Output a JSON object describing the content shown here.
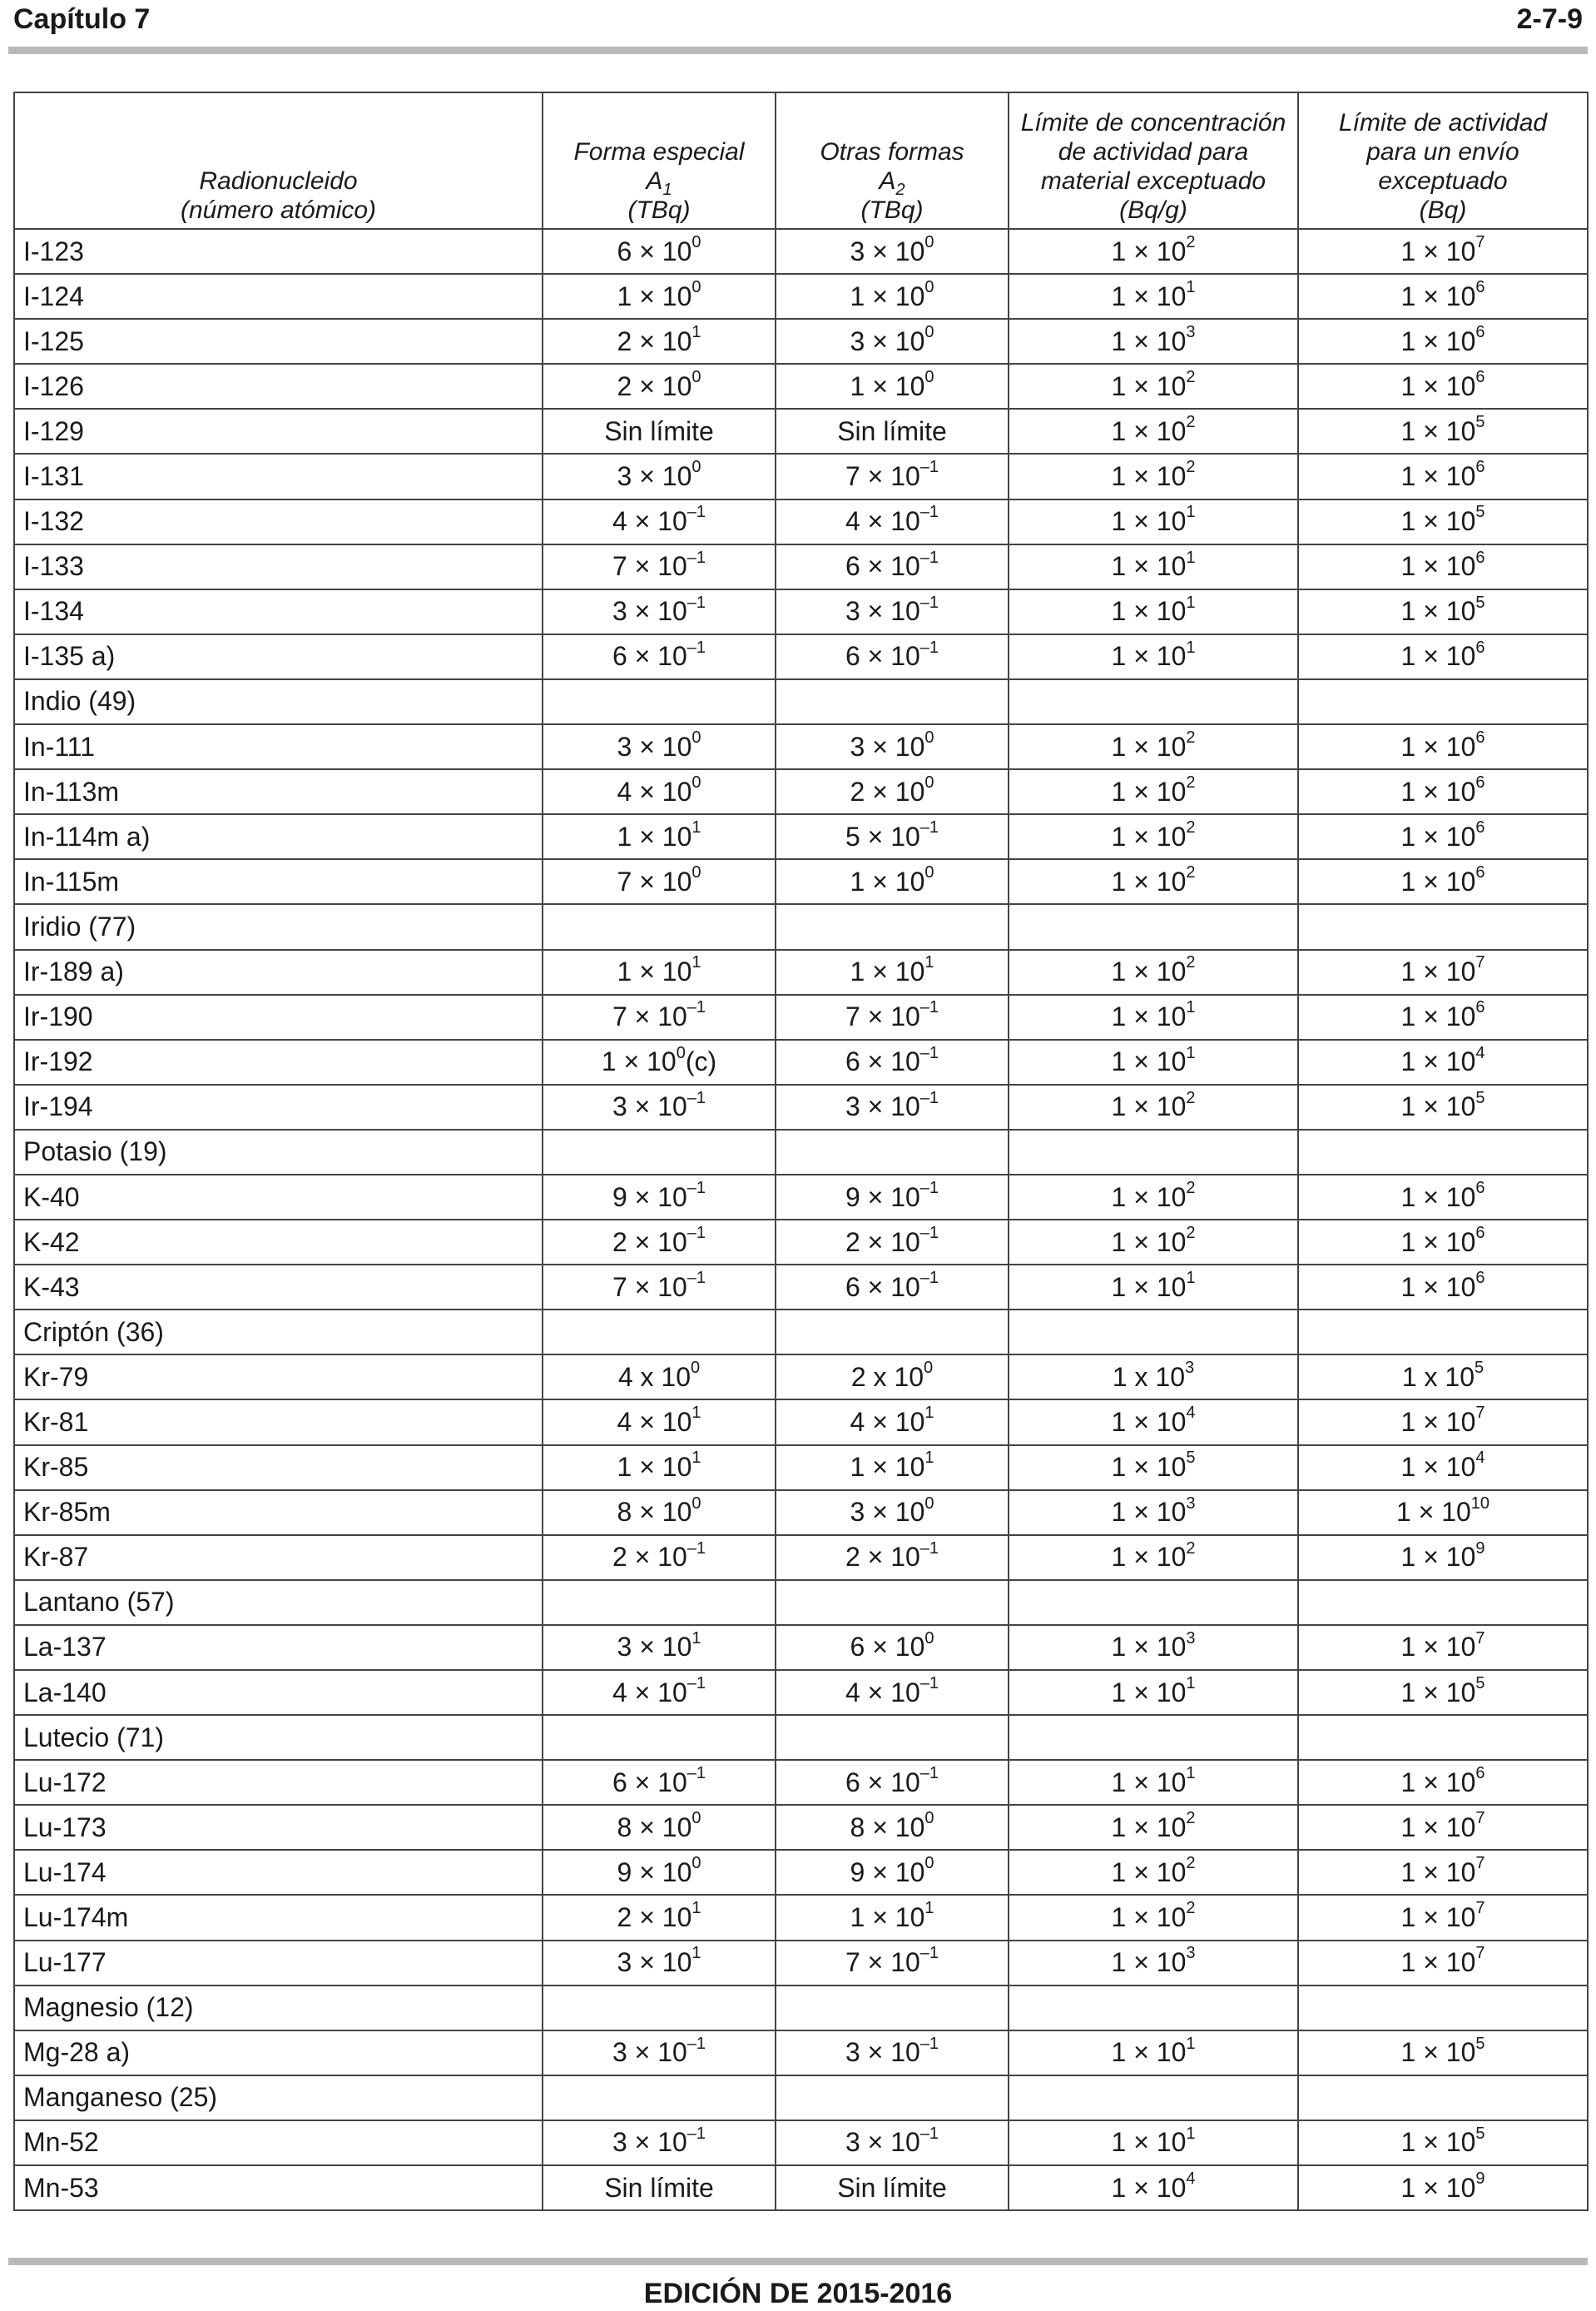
{
  "header": {
    "chapter": "Capítulo 7",
    "page": "2-7-9"
  },
  "footer": {
    "edition": "EDICIÓN DE 2015-2016"
  },
  "table": {
    "headers": {
      "radionuclide": [
        "Radionucleido",
        "(número atómico)"
      ],
      "a1": {
        "line1": "Forma especial",
        "sym": "A",
        "sub": "1",
        "unit": "(TBq)"
      },
      "a2": {
        "line1": "Otras formas",
        "sym": "A",
        "sub": "2",
        "unit": "(TBq)"
      },
      "conc": [
        "Límite de concentración",
        "de actividad para",
        "material exceptuado",
        "(Bq/g)"
      ],
      "act": [
        "Límite de actividad",
        "para un envío",
        "exceptuado",
        "(Bq)"
      ]
    },
    "rows": [
      [
        "I-123",
        "6 × 10^0",
        "3 × 10^0",
        "1 × 10^2",
        "1 × 10^7"
      ],
      [
        "I-124",
        "1 × 10^0",
        "1 × 10^0",
        "1 × 10^1",
        "1 × 10^6"
      ],
      [
        "I-125",
        "2 × 10^1",
        "3 × 10^0",
        "1 × 10^3",
        "1 × 10^6"
      ],
      [
        "I-126",
        "2 × 10^0",
        "1 × 10^0",
        "1 × 10^2",
        "1 × 10^6"
      ],
      [
        "I-129",
        "Sin límite",
        "Sin límite",
        "1 × 10^2",
        "1 × 10^5"
      ],
      [
        "I-131",
        "3 × 10^0",
        "7 × 10^–1",
        "1 × 10^2",
        "1 × 10^6"
      ],
      [
        "I-132",
        "4 × 10^–1",
        "4 × 10^–1",
        "1 × 10^1",
        "1 × 10^5"
      ],
      [
        "I-133",
        "7 × 10^–1",
        "6 × 10^–1",
        "1 × 10^1",
        "1 × 10^6"
      ],
      [
        "I-134",
        "3 × 10^–1",
        "3 × 10^–1",
        "1 × 10^1",
        "1 × 10^5"
      ],
      [
        "I-135 a)",
        "6 × 10^–1",
        "6 × 10^–1",
        "1 × 10^1",
        "1 × 10^6"
      ],
      [
        "Indio (49)",
        "",
        "",
        "",
        ""
      ],
      [
        "In-111",
        "3 × 10^0",
        "3 × 10^0",
        "1 × 10^2",
        "1 × 10^6"
      ],
      [
        "In-113m",
        "4 × 10^0",
        "2 × 10^0",
        "1 × 10^2",
        "1 × 10^6"
      ],
      [
        "In-114m a)",
        "1 × 10^1",
        "5 × 10^–1",
        "1 × 10^2",
        "1 × 10^6"
      ],
      [
        "In-115m",
        "7 × 10^0",
        "1 × 10^0",
        "1 × 10^2",
        "1 × 10^6"
      ],
      [
        "Iridio (77)",
        "",
        "",
        "",
        ""
      ],
      [
        "Ir-189 a)",
        "1 × 10^1",
        "1 × 10^1",
        "1 × 10^2",
        "1 × 10^7"
      ],
      [
        "Ir-190",
        "7 × 10^–1",
        "7 × 10^–1",
        "1 × 10^1",
        "1 × 10^6"
      ],
      [
        "Ir-192",
        "1 × 10^0(c)",
        "6 × 10^–1",
        "1 × 10^1",
        "1 × 10^4"
      ],
      [
        "Ir-194",
        "3 × 10^–1",
        "3 × 10^–1",
        "1 × 10^2",
        "1 × 10^5"
      ],
      [
        "Potasio (19)",
        "",
        "",
        "",
        ""
      ],
      [
        "K-40",
        "9 × 10^–1",
        "9 × 10^–1",
        "1 × 10^2",
        "1 × 10^6"
      ],
      [
        "K-42",
        "2 × 10^–1",
        "2 × 10^–1",
        "1 × 10^2",
        "1 × 10^6"
      ],
      [
        "K-43",
        "7 × 10^–1",
        "6 × 10^–1",
        "1 × 10^1",
        "1 × 10^6"
      ],
      [
        "Criptón (36)",
        "",
        "",
        "",
        ""
      ],
      [
        "Kr-79",
        "4 x 10^0",
        "2 x 10^0",
        "1 x 10^3",
        "1 x 10^5"
      ],
      [
        "Kr-81",
        "4 × 10^1",
        "4 × 10^1",
        "1 × 10^4",
        "1 × 10^7"
      ],
      [
        "Kr-85",
        "1 × 10^1",
        "1 × 10^1",
        "1 × 10^5",
        "1 × 10^4"
      ],
      [
        "Kr-85m",
        "8 × 10^0",
        "3 × 10^0",
        "1 × 10^3",
        "1 × 10^10"
      ],
      [
        "Kr-87",
        "2 × 10^–1",
        "2 × 10^–1",
        "1 × 10^2",
        "1 × 10^9"
      ],
      [
        "Lantano (57)",
        "",
        "",
        "",
        ""
      ],
      [
        "La-137",
        "3 × 10^1",
        "6 × 10^0",
        "1 × 10^3",
        "1 × 10^7"
      ],
      [
        "La-140",
        "4 × 10^–1",
        "4 × 10^–1",
        "1 × 10^1",
        "1 × 10^5"
      ],
      [
        "Lutecio (71)",
        "",
        "",
        "",
        ""
      ],
      [
        "Lu-172",
        "6 × 10^–1",
        "6 × 10^–1",
        "1 × 10^1",
        "1 × 10^6"
      ],
      [
        "Lu-173",
        "8 × 10^0",
        "8 × 10^0",
        "1 × 10^2",
        "1 × 10^7"
      ],
      [
        "Lu-174",
        "9 × 10^0",
        "9 × 10^0",
        "1 × 10^2",
        "1 × 10^7"
      ],
      [
        "Lu-174m",
        "2 × 10^1",
        "1 × 10^1",
        "1 × 10^2",
        "1 × 10^7"
      ],
      [
        "Lu-177",
        "3 × 10^1",
        "7 × 10^–1",
        "1 × 10^3",
        "1 × 10^7"
      ],
      [
        "Magnesio (12)",
        "",
        "",
        "",
        ""
      ],
      [
        "Mg-28 a)",
        "3 × 10^–1",
        "3 × 10^–1",
        "1 × 10^1",
        "1 × 10^5"
      ],
      [
        "Manganeso (25)",
        "",
        "",
        "",
        ""
      ],
      [
        "Mn-52",
        "3 × 10^–1",
        "3 × 10^–1",
        "1 × 10^1",
        "1 × 10^5"
      ],
      [
        "Mn-53",
        "Sin límite",
        "Sin límite",
        "1 × 10^4",
        "1 × 10^9"
      ]
    ]
  }
}
